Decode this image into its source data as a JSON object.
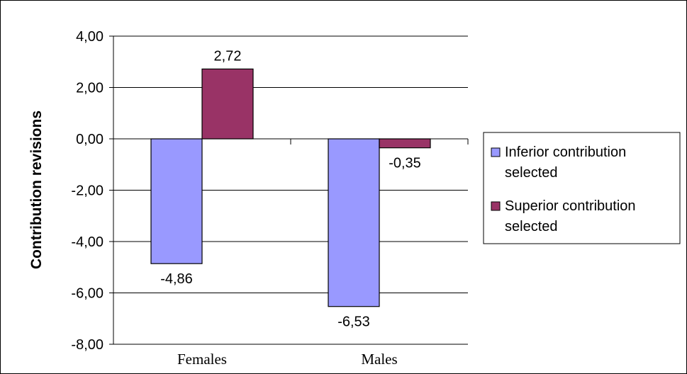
{
  "chart_data": {
    "type": "bar",
    "title": "",
    "xlabel": "",
    "ylabel": "Contribution revisions",
    "categories": [
      "Females",
      "Males"
    ],
    "series": [
      {
        "name": "Inferior contribution selected",
        "legend_lines": [
          "Inferior contribution",
          "selected"
        ],
        "values": [
          -4.86,
          -6.53
        ],
        "labels": [
          "-4,86",
          "-6,53"
        ],
        "color": "#9999ff"
      },
      {
        "name": "Superior contribution selected",
        "legend_lines": [
          "Superior contribution",
          "selected"
        ],
        "values": [
          2.72,
          -0.35
        ],
        "labels": [
          "2,72",
          "-0,35"
        ],
        "color": "#993366"
      }
    ],
    "ylim": [
      -8,
      4
    ],
    "yticks": [
      4,
      2,
      0,
      -2,
      -4,
      -6,
      -8
    ],
    "ytick_labels": [
      "4,00",
      "2,00",
      "0,00",
      "-2,00",
      "-4,00",
      "-6,00",
      "-8,00"
    ],
    "grid": true,
    "legend_position": "right"
  }
}
